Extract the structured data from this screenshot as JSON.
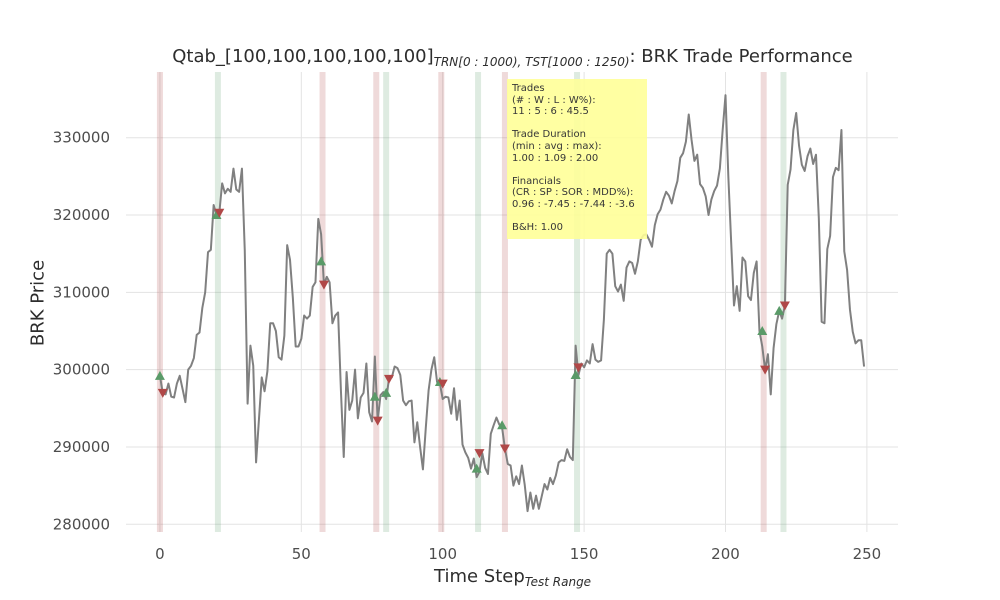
{
  "title": {
    "prefix": "Qtab_[100,100,100,100,100]",
    "subscript": "TRN[0 : 1000), TST[1000 : 1250)",
    "suffix": ": BRK Trade Performance"
  },
  "info_box": {
    "lines": [
      "Trades",
      "(# : W : L : W%):",
      "11 : 5 : 6 : 45.5",
      "",
      "Trade Duration",
      "(min : avg : max):",
      "1.00 : 1.09 : 2.00",
      "",
      "Financials",
      "(CR : SP : SOR : MDD%):",
      "0.96 : -7.45 : -7.44 : -3.6",
      "",
      "B&H: 1.00"
    ]
  },
  "chart_data": {
    "type": "line",
    "title": "Qtab_[100,100,100,100,100] TRN[0 : 1000), TST[1000 : 1250): BRK Trade Performance",
    "xlabel": "Time Step",
    "xlabel_sub": "Test Range",
    "ylabel": "BRK Price",
    "xlim": [
      -12,
      261
    ],
    "ylim": [
      279000,
      338500
    ],
    "xticks": [
      0,
      50,
      100,
      150,
      200,
      250
    ],
    "yticks": [
      280000,
      290000,
      300000,
      310000,
      320000,
      330000
    ],
    "ytick_labels": [
      "280000",
      "290000",
      "300000",
      "310000",
      "320000",
      "330000"
    ],
    "grid": true,
    "line_color": "#808080",
    "buy_color": "#5a9a68",
    "sell_color": "#b04848",
    "series": [
      {
        "name": "BRK",
        "points": [
          [
            0,
            299200
          ],
          [
            1,
            297000
          ],
          [
            2,
            296800
          ],
          [
            3,
            298200
          ],
          [
            4,
            296500
          ],
          [
            5,
            296400
          ],
          [
            6,
            298200
          ],
          [
            7,
            299200
          ],
          [
            8,
            297500
          ],
          [
            9,
            295800
          ],
          [
            10,
            300000
          ],
          [
            11,
            300500
          ],
          [
            12,
            301500
          ],
          [
            13,
            304500
          ],
          [
            14,
            304800
          ],
          [
            15,
            308000
          ],
          [
            16,
            310000
          ],
          [
            17,
            315200
          ],
          [
            18,
            315500
          ],
          [
            19,
            321300
          ],
          [
            20,
            320000
          ],
          [
            21,
            320300
          ],
          [
            22,
            324100
          ],
          [
            23,
            322800
          ],
          [
            24,
            323400
          ],
          [
            25,
            323000
          ],
          [
            26,
            326000
          ],
          [
            27,
            323300
          ],
          [
            28,
            323000
          ],
          [
            29,
            326000
          ],
          [
            30,
            315400
          ],
          [
            31,
            295600
          ],
          [
            32,
            303100
          ],
          [
            33,
            300500
          ],
          [
            34,
            288000
          ],
          [
            35,
            293500
          ],
          [
            36,
            299000
          ],
          [
            37,
            297200
          ],
          [
            38,
            299800
          ],
          [
            39,
            306000
          ],
          [
            40,
            306000
          ],
          [
            41,
            305000
          ],
          [
            42,
            301600
          ],
          [
            43,
            301300
          ],
          [
            44,
            304400
          ],
          [
            45,
            316100
          ],
          [
            46,
            314200
          ],
          [
            47,
            309300
          ],
          [
            48,
            303000
          ],
          [
            49,
            303000
          ],
          [
            50,
            304000
          ],
          [
            51,
            307000
          ],
          [
            52,
            306600
          ],
          [
            53,
            307000
          ],
          [
            54,
            310700
          ],
          [
            55,
            311300
          ],
          [
            56,
            319500
          ],
          [
            57,
            317500
          ],
          [
            58,
            311000
          ],
          [
            59,
            312000
          ],
          [
            60,
            311300
          ],
          [
            61,
            306000
          ],
          [
            62,
            307000
          ],
          [
            63,
            307400
          ],
          [
            64,
            297300
          ],
          [
            65,
            288700
          ],
          [
            66,
            299700
          ],
          [
            67,
            294800
          ],
          [
            68,
            296000
          ],
          [
            69,
            300000
          ],
          [
            70,
            293700
          ],
          [
            71,
            296400
          ],
          [
            72,
            297000
          ],
          [
            73,
            300800
          ],
          [
            74,
            294500
          ],
          [
            75,
            293300
          ],
          [
            76,
            301700
          ],
          [
            77,
            293400
          ],
          [
            78,
            296700
          ],
          [
            79,
            297100
          ],
          [
            80,
            296200
          ],
          [
            81,
            298800
          ],
          [
            82,
            299000
          ],
          [
            83,
            300400
          ],
          [
            84,
            300200
          ],
          [
            85,
            299300
          ],
          [
            86,
            296000
          ],
          [
            87,
            295400
          ],
          [
            88,
            295900
          ],
          [
            89,
            296000
          ],
          [
            90,
            290600
          ],
          [
            91,
            293200
          ],
          [
            92,
            290000
          ],
          [
            93,
            287100
          ],
          [
            94,
            292400
          ],
          [
            95,
            297300
          ],
          [
            96,
            300000
          ],
          [
            97,
            301600
          ],
          [
            98,
            298400
          ],
          [
            99,
            298200
          ],
          [
            100,
            296200
          ],
          [
            101,
            296500
          ],
          [
            102,
            296400
          ],
          [
            103,
            294300
          ],
          [
            104,
            297600
          ],
          [
            105,
            293500
          ],
          [
            106,
            296000
          ],
          [
            107,
            290300
          ],
          [
            108,
            289300
          ],
          [
            109,
            288600
          ],
          [
            110,
            287200
          ],
          [
            111,
            288500
          ],
          [
            112,
            286100
          ],
          [
            113,
            286800
          ],
          [
            114,
            289200
          ],
          [
            115,
            287300
          ],
          [
            116,
            286500
          ],
          [
            117,
            291700
          ],
          [
            118,
            292800
          ],
          [
            119,
            293800
          ],
          [
            120,
            292900
          ],
          [
            121,
            292500
          ],
          [
            122,
            289800
          ],
          [
            123,
            287800
          ],
          [
            124,
            287600
          ],
          [
            125,
            285000
          ],
          [
            126,
            286200
          ],
          [
            127,
            285200
          ],
          [
            128,
            287600
          ],
          [
            129,
            285100
          ],
          [
            130,
            281700
          ],
          [
            131,
            284100
          ],
          [
            132,
            282000
          ],
          [
            133,
            283700
          ],
          [
            134,
            282000
          ],
          [
            135,
            283600
          ],
          [
            136,
            285200
          ],
          [
            137,
            284500
          ],
          [
            138,
            286000
          ],
          [
            139,
            285200
          ],
          [
            140,
            286300
          ],
          [
            141,
            288000
          ],
          [
            142,
            288300
          ],
          [
            143,
            288200
          ],
          [
            144,
            289700
          ],
          [
            145,
            288700
          ],
          [
            146,
            288300
          ],
          [
            147,
            303100
          ],
          [
            148,
            299300
          ],
          [
            149,
            300800
          ],
          [
            150,
            300300
          ],
          [
            151,
            301200
          ],
          [
            152,
            300800
          ],
          [
            153,
            303300
          ],
          [
            154,
            301300
          ],
          [
            155,
            301000
          ],
          [
            156,
            301200
          ],
          [
            157,
            306500
          ],
          [
            158,
            315000
          ],
          [
            159,
            315500
          ],
          [
            160,
            315000
          ],
          [
            161,
            310800
          ],
          [
            162,
            310100
          ],
          [
            163,
            311000
          ],
          [
            164,
            308900
          ],
          [
            165,
            313200
          ],
          [
            166,
            314000
          ],
          [
            167,
            313800
          ],
          [
            168,
            312400
          ],
          [
            169,
            314000
          ],
          [
            170,
            316800
          ],
          [
            171,
            317400
          ],
          [
            172,
            317500
          ],
          [
            173,
            316800
          ],
          [
            174,
            315900
          ],
          [
            175,
            318700
          ],
          [
            176,
            320100
          ],
          [
            177,
            320700
          ],
          [
            178,
            322000
          ],
          [
            179,
            323000
          ],
          [
            180,
            322500
          ],
          [
            181,
            321500
          ],
          [
            182,
            323100
          ],
          [
            183,
            324400
          ],
          [
            184,
            327400
          ],
          [
            185,
            328000
          ],
          [
            186,
            329500
          ],
          [
            187,
            333000
          ],
          [
            188,
            329700
          ],
          [
            189,
            327000
          ],
          [
            190,
            327800
          ],
          [
            191,
            324000
          ],
          [
            192,
            323500
          ],
          [
            193,
            322400
          ],
          [
            194,
            320000
          ],
          [
            195,
            322000
          ],
          [
            196,
            323100
          ],
          [
            197,
            323800
          ],
          [
            198,
            326000
          ],
          [
            199,
            331000
          ],
          [
            200,
            335500
          ],
          [
            201,
            325000
          ],
          [
            202,
            316500
          ],
          [
            203,
            308300
          ],
          [
            204,
            310800
          ],
          [
            205,
            307600
          ],
          [
            206,
            314500
          ],
          [
            207,
            314000
          ],
          [
            208,
            309500
          ],
          [
            209,
            309000
          ],
          [
            210,
            312500
          ],
          [
            211,
            314000
          ],
          [
            212,
            305000
          ],
          [
            213,
            303000
          ],
          [
            214,
            300000
          ],
          [
            215,
            302000
          ],
          [
            216,
            296800
          ],
          [
            217,
            302800
          ],
          [
            218,
            305900
          ],
          [
            219,
            307600
          ],
          [
            220,
            306600
          ],
          [
            221,
            308300
          ],
          [
            222,
            323900
          ],
          [
            223,
            325900
          ],
          [
            224,
            331000
          ],
          [
            225,
            333200
          ],
          [
            226,
            329000
          ],
          [
            227,
            326500
          ],
          [
            228,
            325700
          ],
          [
            229,
            327600
          ],
          [
            230,
            328600
          ],
          [
            231,
            326600
          ],
          [
            232,
            327800
          ],
          [
            233,
            319600
          ],
          [
            234,
            306200
          ],
          [
            235,
            306000
          ],
          [
            236,
            315600
          ],
          [
            237,
            317300
          ],
          [
            238,
            324900
          ],
          [
            239,
            326100
          ],
          [
            240,
            325800
          ],
          [
            241,
            331000
          ],
          [
            242,
            315300
          ],
          [
            243,
            312900
          ],
          [
            244,
            307800
          ],
          [
            245,
            304900
          ],
          [
            246,
            303400
          ],
          [
            247,
            303800
          ],
          [
            248,
            303800
          ],
          [
            249,
            300400
          ]
        ]
      }
    ],
    "buy_markers": [
      [
        0,
        299200
      ],
      [
        20,
        320000
      ],
      [
        57,
        314000
      ],
      [
        76,
        296500
      ],
      [
        80,
        297000
      ],
      [
        99,
        298400
      ],
      [
        112,
        287200
      ],
      [
        121,
        292800
      ],
      [
        147,
        299300
      ],
      [
        213,
        305000
      ],
      [
        219,
        307600
      ]
    ],
    "sell_markers": [
      [
        1,
        297000
      ],
      [
        21,
        320300
      ],
      [
        58,
        311000
      ],
      [
        77,
        293400
      ],
      [
        81,
        298800
      ],
      [
        100,
        298200
      ],
      [
        113,
        289200
      ],
      [
        122,
        289800
      ],
      [
        148,
        300300
      ],
      [
        214,
        300000
      ],
      [
        221,
        308300
      ]
    ],
    "sell_bands": [
      0,
      57.5,
      76.5,
      99.5,
      122,
      213.5
    ],
    "buy_bands": [
      20.5,
      80,
      112.5,
      147.5,
      220.5
    ]
  }
}
